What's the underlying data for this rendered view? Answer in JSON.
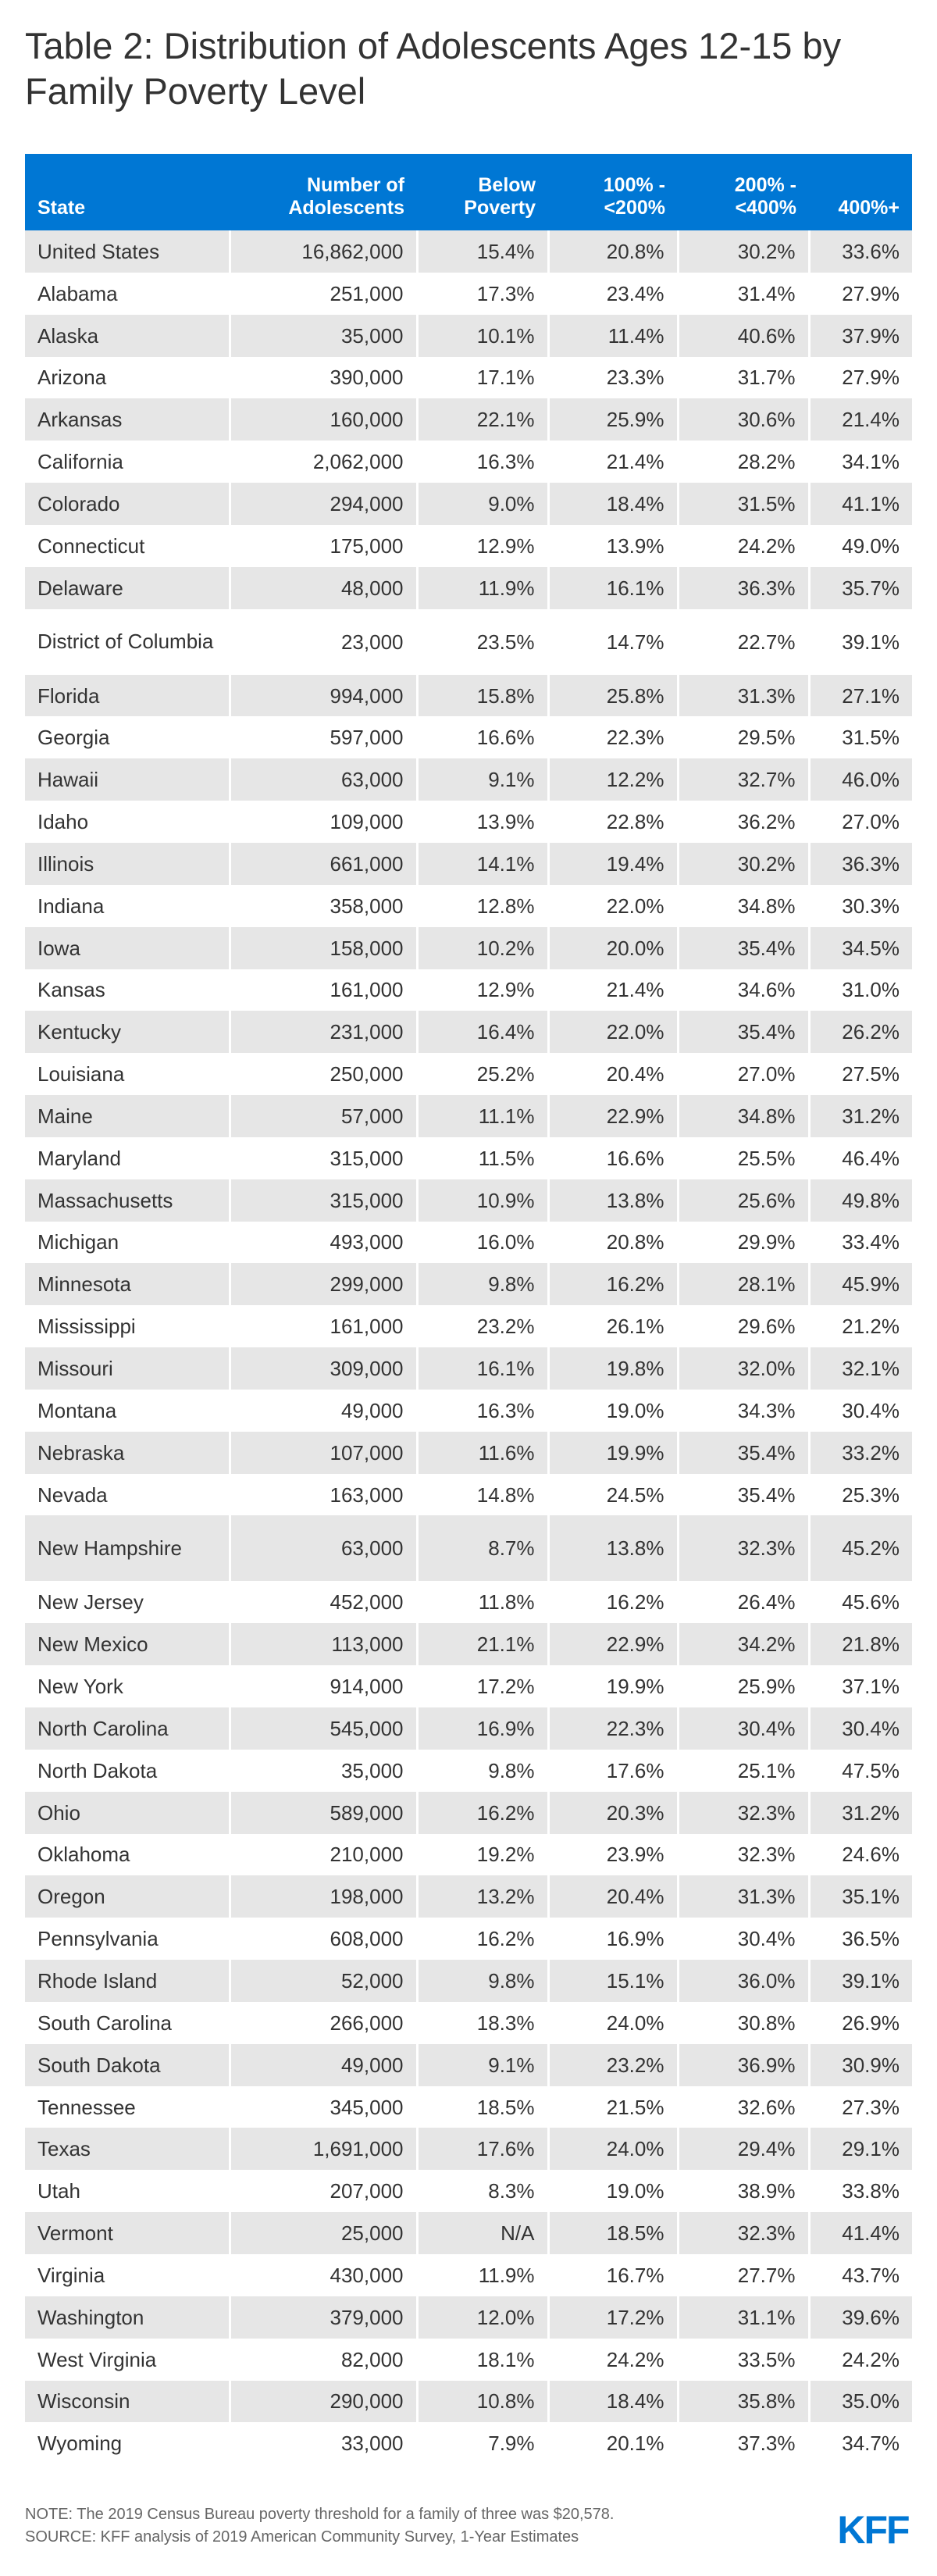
{
  "title": "Table 2: Distribution of Adolescents Ages 12-15 by Family Poverty Level",
  "columns": [
    "State",
    "Number of Adolescents",
    "Below Poverty",
    "100% - <200%",
    "200% - <400%",
    "400%+"
  ],
  "rows": [
    [
      "United States",
      "16,862,000",
      "15.4%",
      "20.8%",
      "30.2%",
      "33.6%"
    ],
    [
      "Alabama",
      "251,000",
      "17.3%",
      "23.4%",
      "31.4%",
      "27.9%"
    ],
    [
      "Alaska",
      "35,000",
      "10.1%",
      "11.4%",
      "40.6%",
      "37.9%"
    ],
    [
      "Arizona",
      "390,000",
      "17.1%",
      "23.3%",
      "31.7%",
      "27.9%"
    ],
    [
      "Arkansas",
      "160,000",
      "22.1%",
      "25.9%",
      "30.6%",
      "21.4%"
    ],
    [
      "California",
      "2,062,000",
      "16.3%",
      "21.4%",
      "28.2%",
      "34.1%"
    ],
    [
      "Colorado",
      "294,000",
      "9.0%",
      "18.4%",
      "31.5%",
      "41.1%"
    ],
    [
      "Connecticut",
      "175,000",
      "12.9%",
      "13.9%",
      "24.2%",
      "49.0%"
    ],
    [
      "Delaware",
      "48,000",
      "11.9%",
      "16.1%",
      "36.3%",
      "35.7%"
    ],
    [
      "District of Columbia",
      "23,000",
      "23.5%",
      "14.7%",
      "22.7%",
      "39.1%"
    ],
    [
      "Florida",
      "994,000",
      "15.8%",
      "25.8%",
      "31.3%",
      "27.1%"
    ],
    [
      "Georgia",
      "597,000",
      "16.6%",
      "22.3%",
      "29.5%",
      "31.5%"
    ],
    [
      "Hawaii",
      "63,000",
      "9.1%",
      "12.2%",
      "32.7%",
      "46.0%"
    ],
    [
      "Idaho",
      "109,000",
      "13.9%",
      "22.8%",
      "36.2%",
      "27.0%"
    ],
    [
      "Illinois",
      "661,000",
      "14.1%",
      "19.4%",
      "30.2%",
      "36.3%"
    ],
    [
      "Indiana",
      "358,000",
      "12.8%",
      "22.0%",
      "34.8%",
      "30.3%"
    ],
    [
      "Iowa",
      "158,000",
      "10.2%",
      "20.0%",
      "35.4%",
      "34.5%"
    ],
    [
      "Kansas",
      "161,000",
      "12.9%",
      "21.4%",
      "34.6%",
      "31.0%"
    ],
    [
      "Kentucky",
      "231,000",
      "16.4%",
      "22.0%",
      "35.4%",
      "26.2%"
    ],
    [
      "Louisiana",
      "250,000",
      "25.2%",
      "20.4%",
      "27.0%",
      "27.5%"
    ],
    [
      "Maine",
      "57,000",
      "11.1%",
      "22.9%",
      "34.8%",
      "31.2%"
    ],
    [
      "Maryland",
      "315,000",
      "11.5%",
      "16.6%",
      "25.5%",
      "46.4%"
    ],
    [
      "Massachusetts",
      "315,000",
      "10.9%",
      "13.8%",
      "25.6%",
      "49.8%"
    ],
    [
      "Michigan",
      "493,000",
      "16.0%",
      "20.8%",
      "29.9%",
      "33.4%"
    ],
    [
      "Minnesota",
      "299,000",
      "9.8%",
      "16.2%",
      "28.1%",
      "45.9%"
    ],
    [
      "Mississippi",
      "161,000",
      "23.2%",
      "26.1%",
      "29.6%",
      "21.2%"
    ],
    [
      "Missouri",
      "309,000",
      "16.1%",
      "19.8%",
      "32.0%",
      "32.1%"
    ],
    [
      "Montana",
      "49,000",
      "16.3%",
      "19.0%",
      "34.3%",
      "30.4%"
    ],
    [
      "Nebraska",
      "107,000",
      "11.6%",
      "19.9%",
      "35.4%",
      "33.2%"
    ],
    [
      "Nevada",
      "163,000",
      "14.8%",
      "24.5%",
      "35.4%",
      "25.3%"
    ],
    [
      "New Hampshire",
      "63,000",
      "8.7%",
      "13.8%",
      "32.3%",
      "45.2%"
    ],
    [
      "New Jersey",
      "452,000",
      "11.8%",
      "16.2%",
      "26.4%",
      "45.6%"
    ],
    [
      "New Mexico",
      "113,000",
      "21.1%",
      "22.9%",
      "34.2%",
      "21.8%"
    ],
    [
      "New York",
      "914,000",
      "17.2%",
      "19.9%",
      "25.9%",
      "37.1%"
    ],
    [
      "North Carolina",
      "545,000",
      "16.9%",
      "22.3%",
      "30.4%",
      "30.4%"
    ],
    [
      "North Dakota",
      "35,000",
      "9.8%",
      "17.6%",
      "25.1%",
      "47.5%"
    ],
    [
      "Ohio",
      "589,000",
      "16.2%",
      "20.3%",
      "32.3%",
      "31.2%"
    ],
    [
      "Oklahoma",
      "210,000",
      "19.2%",
      "23.9%",
      "32.3%",
      "24.6%"
    ],
    [
      "Oregon",
      "198,000",
      "13.2%",
      "20.4%",
      "31.3%",
      "35.1%"
    ],
    [
      "Pennsylvania",
      "608,000",
      "16.2%",
      "16.9%",
      "30.4%",
      "36.5%"
    ],
    [
      "Rhode Island",
      "52,000",
      "9.8%",
      "15.1%",
      "36.0%",
      "39.1%"
    ],
    [
      "South Carolina",
      "266,000",
      "18.3%",
      "24.0%",
      "30.8%",
      "26.9%"
    ],
    [
      "South Dakota",
      "49,000",
      "9.1%",
      "23.2%",
      "36.9%",
      "30.9%"
    ],
    [
      "Tennessee",
      "345,000",
      "18.5%",
      "21.5%",
      "32.6%",
      "27.3%"
    ],
    [
      "Texas",
      "1,691,000",
      "17.6%",
      "24.0%",
      "29.4%",
      "29.1%"
    ],
    [
      "Utah",
      "207,000",
      "8.3%",
      "19.0%",
      "38.9%",
      "33.8%"
    ],
    [
      "Vermont",
      "25,000",
      "N/A",
      "18.5%",
      "32.3%",
      "41.4%"
    ],
    [
      "Virginia",
      "430,000",
      "11.9%",
      "16.7%",
      "27.7%",
      "43.7%"
    ],
    [
      "Washington",
      "379,000",
      "12.0%",
      "17.2%",
      "31.1%",
      "39.6%"
    ],
    [
      "West Virginia",
      "82,000",
      "18.1%",
      "24.2%",
      "33.5%",
      "24.2%"
    ],
    [
      "Wisconsin",
      "290,000",
      "10.8%",
      "18.4%",
      "35.8%",
      "35.0%"
    ],
    [
      "Wyoming",
      "33,000",
      "7.9%",
      "20.1%",
      "37.3%",
      "34.7%"
    ]
  ],
  "notes": {
    "note": "NOTE: The 2019 Census Bureau poverty threshold for a family of three was $20,578.",
    "source": "SOURCE: KFF analysis of 2019 American Community Survey, 1-Year Estimates"
  },
  "logo_text": "KFF",
  "colors": {
    "header_bg": "#0077d4",
    "stripe": "#e6e6e6",
    "logo": "#0077d4"
  }
}
